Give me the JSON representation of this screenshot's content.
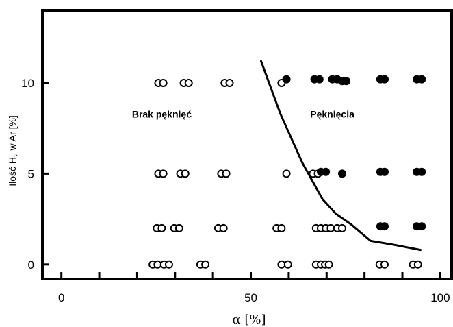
{
  "chart_data": {
    "type": "scatter",
    "title": "",
    "xlabel": "α [%]",
    "ylabel_parts": [
      "Ilość H",
      "2",
      " w Ar [%]"
    ],
    "xlim": [
      -5,
      103
    ],
    "ylim": [
      -0.8,
      14
    ],
    "x_ticks": [
      0,
      10,
      20,
      30,
      40,
      50,
      60,
      70,
      80,
      90,
      100
    ],
    "x_tick_labels": [
      "0",
      "50",
      "100"
    ],
    "x_tick_label_values": [
      0,
      50,
      100
    ],
    "y_ticks": [
      0,
      5,
      10
    ],
    "y_tick_labels": [
      "0",
      "5",
      "10"
    ],
    "grid": false,
    "annotations": [
      {
        "text": "Brak pęknięć",
        "x": 26.5,
        "y": 8.1
      },
      {
        "text": "Pęknięcia",
        "x": 71.5,
        "y": 8.1
      }
    ],
    "series": [
      {
        "marker": "open",
        "points": [
          [
            24.1,
            0
          ],
          [
            25.4,
            0
          ],
          [
            27.1,
            0
          ],
          [
            28.4,
            0
          ],
          [
            36.7,
            0
          ],
          [
            38.0,
            0
          ],
          [
            58.1,
            0
          ],
          [
            59.8,
            0
          ],
          [
            67.2,
            0
          ],
          [
            68.5,
            0
          ],
          [
            69.6,
            0
          ],
          [
            70.6,
            0
          ],
          [
            84.0,
            0
          ],
          [
            85.3,
            0
          ],
          [
            92.8,
            0
          ],
          [
            94.1,
            0
          ],
          [
            25.2,
            2
          ],
          [
            26.5,
            2
          ],
          [
            29.8,
            2
          ],
          [
            31.1,
            2
          ],
          [
            41.4,
            2
          ],
          [
            42.8,
            2
          ],
          [
            56.8,
            2
          ],
          [
            58.1,
            2
          ],
          [
            67.2,
            2
          ],
          [
            68.5,
            2
          ],
          [
            69.8,
            2
          ],
          [
            71.1,
            2
          ],
          [
            72.8,
            2
          ],
          [
            74.1,
            2
          ],
          [
            25.6,
            5
          ],
          [
            26.9,
            5
          ],
          [
            31.4,
            5
          ],
          [
            32.7,
            5
          ],
          [
            42.2,
            5
          ],
          [
            43.5,
            5
          ],
          [
            59.4,
            5
          ],
          [
            66.4,
            5
          ],
          [
            67.7,
            5
          ],
          [
            25.6,
            10
          ],
          [
            26.9,
            10
          ],
          [
            32.3,
            10
          ],
          [
            33.6,
            10
          ],
          [
            43.1,
            10
          ],
          [
            44.4,
            10
          ],
          [
            58.1,
            10
          ]
        ]
      },
      {
        "marker": "filled",
        "points": [
          [
            84.2,
            2.1
          ],
          [
            85.3,
            2.1
          ],
          [
            93.8,
            2.1
          ],
          [
            95.1,
            2.1
          ],
          [
            68.5,
            5.1
          ],
          [
            69.8,
            5.1
          ],
          [
            74.1,
            5
          ],
          [
            84.2,
            5.1
          ],
          [
            85.3,
            5.1
          ],
          [
            93.8,
            5.1
          ],
          [
            95.1,
            5.1
          ],
          [
            59.4,
            10.2
          ],
          [
            66.8,
            10.2
          ],
          [
            68.1,
            10.2
          ],
          [
            71.5,
            10.2
          ],
          [
            72.8,
            10.2
          ],
          [
            74.1,
            10.1
          ],
          [
            75.2,
            10.1
          ],
          [
            84.2,
            10.2
          ],
          [
            85.3,
            10.2
          ],
          [
            93.8,
            10.2
          ],
          [
            95.1,
            10.2
          ]
        ]
      }
    ],
    "curve": [
      [
        52.7,
        11.2
      ],
      [
        57.8,
        8.3
      ],
      [
        63.6,
        5.6
      ],
      [
        68.9,
        3.6
      ],
      [
        72.4,
        2.8
      ],
      [
        76.5,
        2.2
      ],
      [
        81.6,
        1.3
      ],
      [
        87.4,
        1.1
      ],
      [
        94.8,
        0.8
      ]
    ]
  }
}
